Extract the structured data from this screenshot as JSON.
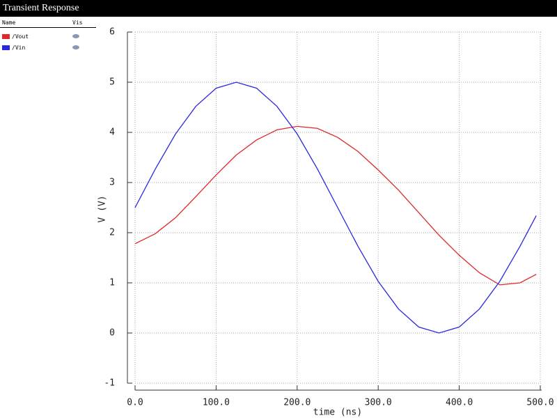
{
  "header": {
    "title": "Transient Response"
  },
  "legend_header": {
    "name": "Name",
    "vis": "Vis"
  },
  "chart_data": {
    "type": "line",
    "xlabel": "time (ns)",
    "ylabel": "V (V)",
    "x": [
      0,
      25,
      50,
      75,
      100,
      125,
      150,
      175,
      200,
      225,
      250,
      275,
      300,
      325,
      350,
      375,
      400,
      425,
      450,
      475,
      495
    ],
    "series": [
      {
        "name": "/Vout",
        "color": "#e02828",
        "values": [
          1.78,
          1.98,
          2.3,
          2.72,
          3.15,
          3.55,
          3.85,
          4.05,
          4.12,
          4.08,
          3.9,
          3.62,
          3.25,
          2.85,
          2.4,
          1.95,
          1.55,
          1.2,
          0.96,
          1.0,
          1.17
        ]
      },
      {
        "name": "/Vin",
        "color": "#2828e0",
        "values": [
          2.5,
          3.27,
          3.97,
          4.52,
          4.88,
          5.0,
          4.88,
          4.52,
          3.97,
          3.27,
          2.5,
          1.73,
          1.03,
          0.48,
          0.12,
          0,
          0.12,
          0.48,
          1.03,
          1.73,
          2.34
        ]
      }
    ],
    "xlim": [
      0,
      500
    ],
    "ylim": [
      -1,
      6
    ],
    "xticks": [
      {
        "value": 0,
        "label": "0.0"
      },
      {
        "value": 100,
        "label": "100.0"
      },
      {
        "value": 200,
        "label": "200.0"
      },
      {
        "value": 300,
        "label": "300.0"
      },
      {
        "value": 400,
        "label": "400.0"
      },
      {
        "value": 500,
        "label": "500.0"
      }
    ],
    "yticks": [
      6,
      5,
      4,
      3,
      2,
      1,
      0,
      -1
    ],
    "grid": true
  }
}
